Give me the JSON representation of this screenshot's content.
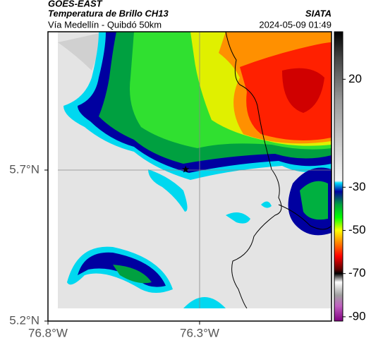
{
  "header": {
    "title": "GOES-EAST",
    "subtitle": "Temperatura de Brillo CH13",
    "source": "SIATA",
    "region": "Vía Medellín - Quibdó 50km",
    "datetime": "2024-05-09 01:49"
  },
  "map": {
    "xlim": [
      -76.8,
      -75.865
    ],
    "ylim": [
      5.2,
      6.158
    ],
    "xticks": [
      {
        "value": -76.8,
        "label": "76.8°W"
      },
      {
        "value": -76.3,
        "label": "76.3°W"
      }
    ],
    "yticks": [
      {
        "value": 5.2,
        "label": "5.2°N"
      },
      {
        "value": 5.7,
        "label": "5.7°N"
      }
    ],
    "marker": {
      "lon": -76.346,
      "lat": 5.702
    }
  },
  "colorbar": {
    "clim": [
      -92,
      42
    ],
    "ticks": [
      20,
      -30,
      -50,
      -70,
      -90
    ],
    "stops": [
      {
        "value": 42,
        "color": "#000000"
      },
      {
        "value": 30,
        "color": "#444444"
      },
      {
        "value": 10,
        "color": "#9a9a9a"
      },
      {
        "value": -20,
        "color": "#e8e8e8"
      },
      {
        "value": -27,
        "color": "#f5f5f5"
      },
      {
        "value": -28,
        "color": "#00e0ff"
      },
      {
        "value": -32,
        "color": "#0000a0"
      },
      {
        "value": -38,
        "color": "#00a040"
      },
      {
        "value": -44,
        "color": "#00ff00"
      },
      {
        "value": -50,
        "color": "#ffff00"
      },
      {
        "value": -56,
        "color": "#ff8000"
      },
      {
        "value": -62,
        "color": "#ff0000"
      },
      {
        "value": -68,
        "color": "#600000"
      },
      {
        "value": -70,
        "color": "#000000"
      },
      {
        "value": -74,
        "color": "#ffffff"
      },
      {
        "value": -80,
        "color": "#a0a0a0"
      },
      {
        "value": -85,
        "color": "#c060c0"
      },
      {
        "value": -92,
        "color": "#800080"
      }
    ]
  }
}
